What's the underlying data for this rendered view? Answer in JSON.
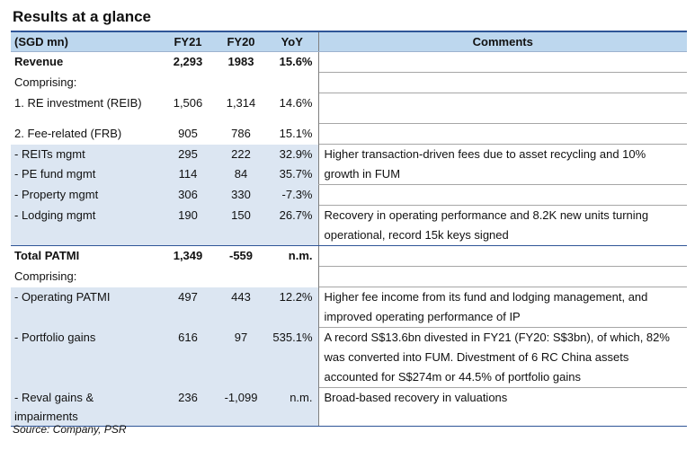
{
  "title": "Results at a glance",
  "headers": {
    "label": "(SGD mn)",
    "fy21": "FY21",
    "fy20": "FY20",
    "yoy": "YoY",
    "comments": "Comments"
  },
  "rows": [
    {
      "label": "Revenue",
      "fy21": "2,293",
      "fy20": "1983",
      "yoy": "15.6%",
      "comment": ""
    },
    {
      "label": "Comprising:",
      "fy21": "",
      "fy20": "",
      "yoy": "",
      "comment": ""
    },
    {
      "label": "1. RE investment (REIB)",
      "fy21": "1,506",
      "fy20": "1,314",
      "yoy": "14.6%",
      "comment": ""
    },
    {
      "label": "2. Fee-related (FRB)",
      "fy21": "905",
      "fy20": "786",
      "yoy": "15.1%",
      "comment": ""
    },
    {
      "label": " - REITs mgmt",
      "fy21": "295",
      "fy20": "222",
      "yoy": "32.9%",
      "comment": "Higher transaction-driven fees due to  asset recycling and 10% growth in FUM"
    },
    {
      "label": " - PE fund mgmt",
      "fy21": "114",
      "fy20": "84",
      "yoy": "35.7%",
      "comment": ""
    },
    {
      "label": " - Property mgmt",
      "fy21": "306",
      "fy20": "330",
      "yoy": "-7.3%",
      "comment": ""
    },
    {
      "label": " - Lodging mgmt",
      "fy21": "190",
      "fy20": "150",
      "yoy": "26.7%",
      "comment": "Recovery in operating performance and 8.2K new units turning operational, record 15k keys signed"
    },
    {
      "label": "Total PATMI",
      "fy21": "1,349",
      "fy20": "-559",
      "yoy": "n.m.",
      "comment": ""
    },
    {
      "label": "Comprising:",
      "fy21": "",
      "fy20": "",
      "yoy": "",
      "comment": ""
    },
    {
      "label": " - Operating PATMI",
      "fy21": "497",
      "fy20": "443",
      "yoy": "12.2%",
      "comment": "Higher fee income from its fund and lodging management, and improved operating performance of IP"
    },
    {
      "label": " - Portfolio gains",
      "fy21": "616",
      "fy20": "97",
      "yoy": "535.1%",
      "comment": "A record S$13.6bn divested in FY21 (FY20: S$3bn), of which, 82% was converted into FUM. Divestment of 6 RC China assets accounted for S$274m or 44.5% of portfolio gains"
    },
    {
      "label": " - Reval gains & impairments",
      "fy21": "236",
      "fy20": "-1,099",
      "yoy": "n.m.",
      "comment": "Broad-based recovery in valuations"
    }
  ],
  "source": "Source: Company, PSR",
  "colors": {
    "header_bg": "#bdd7ee",
    "shade_bg": "#dce6f2",
    "rule": "#2f5597"
  }
}
